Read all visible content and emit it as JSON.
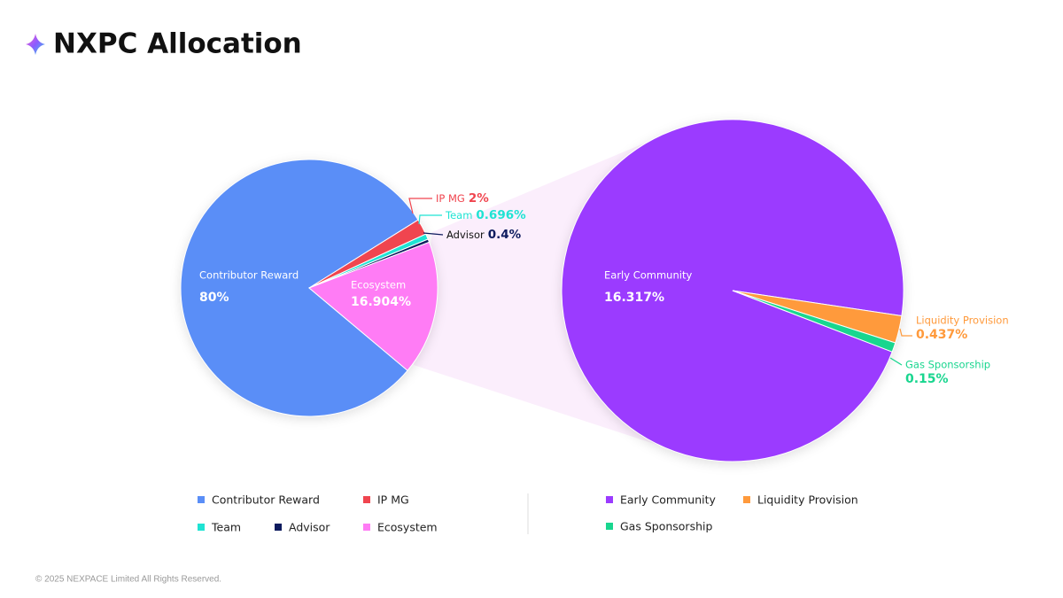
{
  "title": "NXPC Allocation",
  "footer": "© 2025 NEXPACE Limited All Rights Reserved.",
  "chart_data": [
    {
      "type": "pie",
      "categories": [
        "Contributor Reward",
        "IP MG",
        "Team",
        "Advisor",
        "Ecosystem"
      ],
      "values": [
        80,
        2,
        0.696,
        0.4,
        16.904
      ],
      "value_labels": [
        "80%",
        "2%",
        "0.696%",
        "0.4%",
        "16.904%"
      ],
      "colors": [
        "#5a8ef7",
        "#f0454f",
        "#1fe3d3",
        "#0d1b5e",
        "#ff7cf5"
      ]
    },
    {
      "type": "pie",
      "categories": [
        "Early Community",
        "Liquidity Provision",
        "Gas Sponsorship"
      ],
      "values": [
        16.317,
        0.437,
        0.15
      ],
      "value_labels": [
        "16.317%",
        "0.437%",
        "0.15%"
      ],
      "colors": [
        "#9b3bff",
        "#ff9a3c",
        "#19d68f"
      ]
    }
  ]
}
